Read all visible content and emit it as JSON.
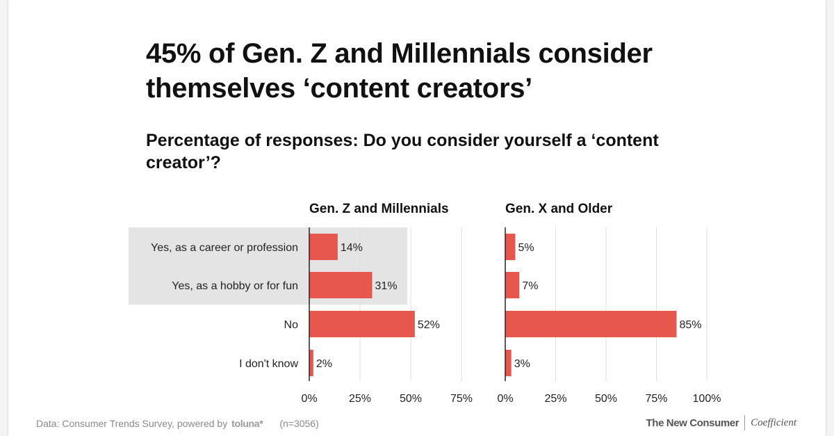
{
  "title": "45% of Gen. Z and Millennials consider themselves ‘content creators’",
  "subtitle": "Percentage of responses: Do you consider yourself a ‘content creator’?",
  "chart_data": [
    {
      "type": "bar",
      "orientation": "horizontal",
      "title": "Gen. Z and Millennials",
      "categories": [
        "Yes, as a career or profession",
        "Yes, as a hobby or for fun",
        "No",
        "I don't know"
      ],
      "values": [
        14,
        31,
        52,
        2
      ],
      "value_labels": [
        "14%",
        "31%",
        "52%",
        "2%"
      ],
      "xlim": [
        0,
        75
      ],
      "ticks": [
        0,
        25,
        50,
        75
      ],
      "tick_labels": [
        "0%",
        "25%",
        "50%",
        "75%"
      ],
      "highlighted_categories": [
        "Yes, as a career or profession",
        "Yes, as a hobby or for fun"
      ],
      "grid": true
    },
    {
      "type": "bar",
      "orientation": "horizontal",
      "title": "Gen. X and Older",
      "categories": [
        "Yes, as a career or profession",
        "Yes, as a hobby or for fun",
        "No",
        "I don't know"
      ],
      "values": [
        5,
        7,
        85,
        3
      ],
      "value_labels": [
        "5%",
        "7%",
        "85%",
        "3%"
      ],
      "xlim": [
        0,
        100
      ],
      "ticks": [
        0,
        25,
        50,
        75,
        100
      ],
      "tick_labels": [
        "0%",
        "25%",
        "50%",
        "75%",
        "100%"
      ],
      "grid": true
    }
  ],
  "colors": {
    "bar": "#e8574e",
    "highlight_band": "#e4e4e4",
    "grid": "#dedede",
    "axis": "#222222"
  },
  "footer": {
    "source_prefix": "Data: Consumer Trends Survey, powered by",
    "source_brand": "toluna*",
    "sample": "(n=3056)",
    "logo_primary": "The New Consumer",
    "logo_secondary": "Coefficient"
  }
}
